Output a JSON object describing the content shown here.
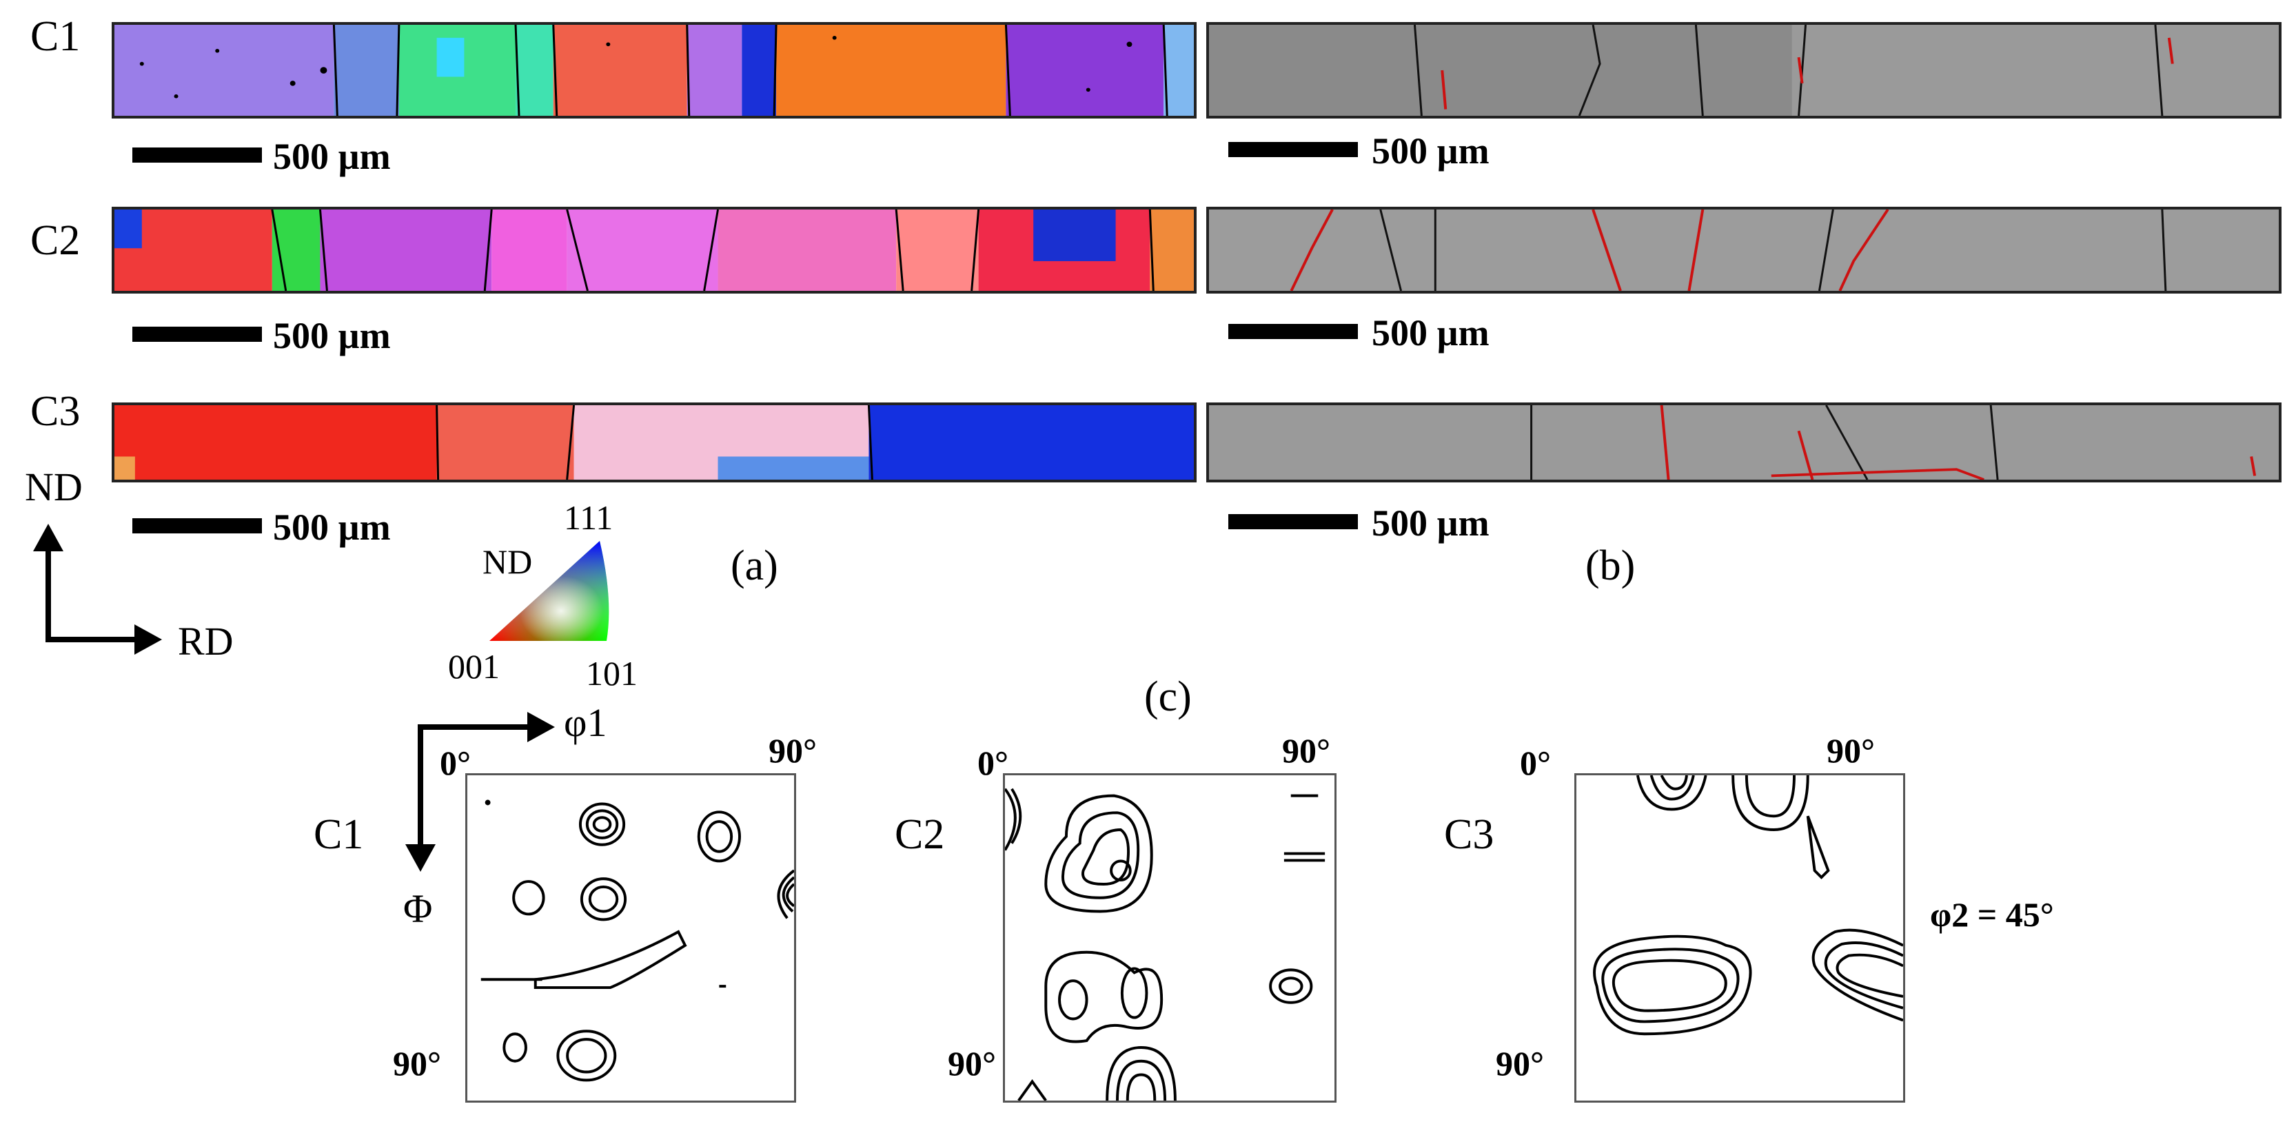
{
  "panel_a": {
    "label": "(a)",
    "rows": [
      {
        "label": "C1",
        "scale": "500 µm"
      },
      {
        "label": "C2",
        "scale": "500 µm"
      },
      {
        "label": "C3",
        "scale": "500 µm"
      }
    ]
  },
  "panel_b": {
    "label": "(b)",
    "scales": [
      "500 µm",
      "500 µm",
      "500 µm"
    ]
  },
  "axes": {
    "nd": "ND",
    "rd": "RD"
  },
  "ipf_legend": {
    "direction": "ND",
    "corners": [
      "111",
      "001",
      "101"
    ]
  },
  "panel_c": {
    "label": "(c)",
    "phi1": "φ1",
    "Phi": "Φ",
    "angle_start": "0°",
    "angle_end": "90°",
    "phi2_note": "φ2 = 45°",
    "sections": [
      "C1",
      "C2",
      "C3"
    ]
  },
  "colors": {
    "red_boundary": "#cc1111",
    "ebsd_gray": "#9a9a9a"
  }
}
